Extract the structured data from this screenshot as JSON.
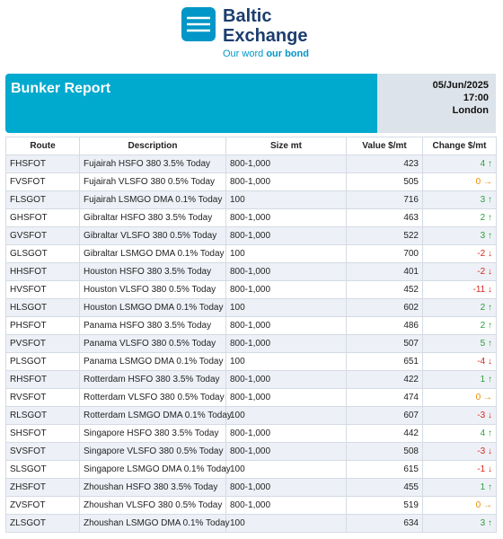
{
  "logo": {
    "line1": "Baltic",
    "line2": "Exchange",
    "tagline_a": "Our word",
    "tagline_b": "our bond"
  },
  "header": {
    "title": "Bunker Report",
    "date": "05/Jun/2025",
    "time": "17:00",
    "place": "London"
  },
  "table": {
    "columns": [
      "Route",
      "Description",
      "Size mt",
      "Value $/mt",
      "Change $/mt"
    ],
    "rows": [
      [
        "FHSFOT",
        "Fujairah HSFO 380 3.5% Today",
        "800-1,000",
        423,
        "4 ↑"
      ],
      [
        "FVSFOT",
        "Fujairah VLSFO 380 0.5% Today",
        "800-1,000",
        505,
        "0 →"
      ],
      [
        "FLSGOT",
        "Fujairah LSMGO DMA 0.1% Today",
        "100",
        716,
        "3 ↑"
      ],
      [
        "GHSFOT",
        "Gibraltar HSFO 380 3.5% Today",
        "800-1,000",
        463,
        "2 ↑"
      ],
      [
        "GVSFOT",
        "Gibraltar VLSFO 380 0.5% Today",
        "800-1,000",
        522,
        "3 ↑"
      ],
      [
        "GLSGOT",
        "Gibraltar LSMGO DMA 0.1% Today",
        "100",
        700,
        "-2 ↓"
      ],
      [
        "HHSFOT",
        "Houston HSFO 380 3.5% Today",
        "800-1,000",
        401,
        "-2 ↓"
      ],
      [
        "HVSFOT",
        "Houston VLSFO 380 0.5% Today",
        "800-1,000",
        452,
        "-11 ↓"
      ],
      [
        "HLSGOT",
        "Houston LSMGO DMA 0.1% Today",
        "100",
        602,
        "2 ↑"
      ],
      [
        "PHSFOT",
        "Panama HSFO 380 3.5% Today",
        "800-1,000",
        486,
        "2 ↑"
      ],
      [
        "PVSFOT",
        "Panama VLSFO 380 0.5% Today",
        "800-1,000",
        507,
        "5 ↑"
      ],
      [
        "PLSGOT",
        "Panama LSMGO DMA 0.1% Today",
        "100",
        651,
        "-4 ↓"
      ],
      [
        "RHSFOT",
        "Rotterdam HSFO 380 3.5% Today",
        "800-1,000",
        422,
        "1 ↑"
      ],
      [
        "RVSFOT",
        "Rotterdam VLSFO 380 0.5% Today",
        "800-1,000",
        474,
        "0 →"
      ],
      [
        "RLSGOT",
        "Rotterdam LSMGO DMA 0.1% Today",
        "100",
        607,
        "-3 ↓"
      ],
      [
        "SHSFOT",
        "Singapore HSFO 380 3.5% Today",
        "800-1,000",
        442,
        "4 ↑"
      ],
      [
        "SVSFOT",
        "Singapore VLSFO 380 0.5% Today",
        "800-1,000",
        508,
        "-3 ↓"
      ],
      [
        "SLSGOT",
        "Singapore LSMGO DMA 0.1% Today",
        "100",
        615,
        "-1 ↓"
      ],
      [
        "ZHSFOT",
        "Zhoushan HSFO 380 3.5% Today",
        "800-1,000",
        455,
        "1 ↑"
      ],
      [
        "ZVSFOT",
        "Zhoushan VLSFO 380 0.5% Today",
        "800-1,000",
        519,
        "0 →"
      ],
      [
        "ZLSGOT",
        "Zhoushan LSMGO DMA 0.1% Today",
        "100",
        634,
        "3 ↑"
      ]
    ],
    "change_colors": [
      "#2e9e3a",
      "#f08a00",
      "#2e9e3a",
      "#2e9e3a",
      "#2e9e3a",
      "#d9261c",
      "#d9261c",
      "#d9261c",
      "#2e9e3a",
      "#2e9e3a",
      "#2e9e3a",
      "#d9261c",
      "#2e9e3a",
      "#f08a00",
      "#d9261c",
      "#2e9e3a",
      "#d9261c",
      "#d9261c",
      "#2e9e3a",
      "#f08a00",
      "#2e9e3a"
    ]
  }
}
